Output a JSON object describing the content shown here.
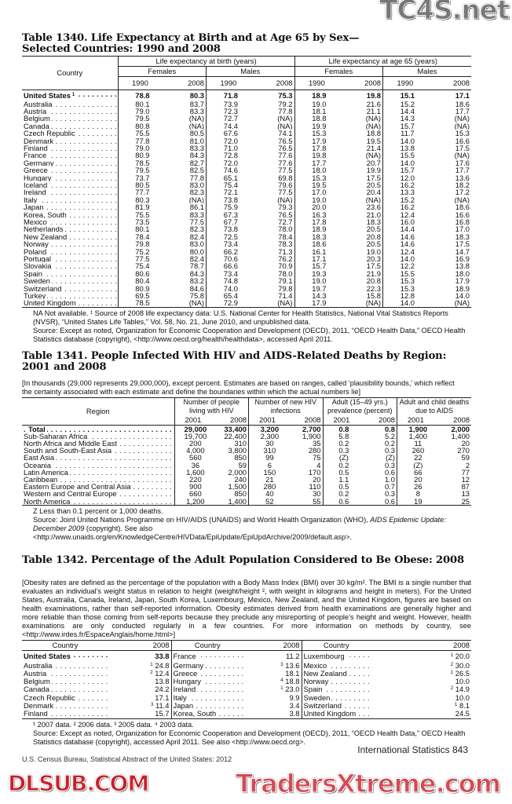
{
  "watermarks": {
    "top": "TC4S.net",
    "middle": "DLSUB.COM",
    "bottom": "TradersXtreme.com"
  },
  "t1340": {
    "title": "Table 1340. Life Expectancy at Birth and at Age 65 by Sex—Selected Countries: 1990 and 2008",
    "country_header": "Country",
    "group_headers": [
      "Life expectancy at birth (years)",
      "Life expectancy at age 65 (years)"
    ],
    "sex_headers": [
      "Females",
      "Males",
      "Females",
      "Males"
    ],
    "years": [
      "1990",
      "2008",
      "1990",
      "2008",
      "1990",
      "2008",
      "1990",
      "2008"
    ],
    "rows": [
      {
        "name": "United States",
        "sup": "1",
        "bold": true,
        "v": [
          "78.8",
          "80.3",
          "71.8",
          "75.3",
          "18.9",
          "19.8",
          "15.1",
          "17.1"
        ]
      },
      {
        "name": "Australia",
        "v": [
          "80.1",
          "83.7",
          "73.9",
          "79.2",
          "19.0",
          "21.6",
          "15.2",
          "18.6"
        ]
      },
      {
        "name": "Austria",
        "v": [
          "79.0",
          "83.3",
          "72.3",
          "77.8",
          "18.1",
          "21.1",
          "14.4",
          "17.7"
        ]
      },
      {
        "name": "Belgium",
        "v": [
          "79.5",
          "(NA)",
          "72.7",
          "(NA)",
          "18.8",
          "(NA)",
          "14.3",
          "(NA)"
        ]
      },
      {
        "name": "Canada",
        "v": [
          "80.8",
          "(NA)",
          "74.4",
          "(NA)",
          "19.9",
          "(NA)",
          "15.7",
          "(NA)"
        ]
      },
      {
        "name": "Czech Republic",
        "v": [
          "75.5",
          "80.5",
          "67.6",
          "74.1",
          "15.3",
          "18.8",
          "11.7",
          "15.3"
        ]
      },
      {
        "name": "Denmark",
        "v": [
          "77.8",
          "81.0",
          "72.0",
          "76.5",
          "17.9",
          "19.5",
          "14.0",
          "16.6"
        ]
      },
      {
        "name": "Finland",
        "v": [
          "79.0",
          "83.3",
          "71.0",
          "76.5",
          "17.8",
          "21.4",
          "13.8",
          "17.5"
        ]
      },
      {
        "name": "France",
        "v": [
          "80.9",
          "84.3",
          "72.8",
          "77.6",
          "19.8",
          "(NA)",
          "15.5",
          "(NA)"
        ]
      },
      {
        "name": "Germany",
        "v": [
          "78.5",
          "82.7",
          "72.0",
          "77.6",
          "17.7",
          "20.7",
          "14.0",
          "17.6"
        ]
      },
      {
        "name": "Greece",
        "v": [
          "79.5",
          "82.5",
          "74.6",
          "77.5",
          "18.0",
          "19.9",
          "15.7",
          "17.7"
        ]
      },
      {
        "name": "Hungary",
        "v": [
          "73.7",
          "77.8",
          "65.1",
          "69.8",
          "15.3",
          "17.5",
          "12.0",
          "13.6"
        ]
      },
      {
        "name": "Iceland",
        "v": [
          "80.5",
          "83.0",
          "75.4",
          "79.6",
          "19.5",
          "20.5",
          "16.2",
          "18.2"
        ]
      },
      {
        "name": "Ireland",
        "v": [
          "77.7",
          "82.3",
          "72.1",
          "77.5",
          "17.0",
          "20.4",
          "13.3",
          "17.2"
        ]
      },
      {
        "name": "Italy",
        "v": [
          "80.3",
          "(NA)",
          "73.8",
          "(NA)",
          "19.0",
          "(NA)",
          "15.2",
          "(NA)"
        ]
      },
      {
        "name": "Japan",
        "v": [
          "81.9",
          "86.1",
          "75.9",
          "79.3",
          "20.0",
          "23.6",
          "16.2",
          "18.6"
        ]
      },
      {
        "name": "Korea, South",
        "v": [
          "75.5",
          "83.3",
          "67.3",
          "76.5",
          "16.3",
          "21.0",
          "12.4",
          "16.6"
        ]
      },
      {
        "name": "Mexico",
        "v": [
          "73.5",
          "77.5",
          "67.7",
          "72.7",
          "17.8",
          "18.3",
          "16.0",
          "16.8"
        ]
      },
      {
        "name": "Netherlands",
        "v": [
          "80.1",
          "82.3",
          "73.8",
          "78.0",
          "18.9",
          "20.5",
          "14.4",
          "17.0"
        ]
      },
      {
        "name": "New Zealand",
        "v": [
          "78.4",
          "82.4",
          "72.5",
          "78.4",
          "18.3",
          "20.8",
          "14.6",
          "18.3"
        ]
      },
      {
        "name": "Norway",
        "v": [
          "79.8",
          "83.0",
          "73.4",
          "78.3",
          "18.6",
          "20.5",
          "14.6",
          "17.5"
        ]
      },
      {
        "name": "Poland",
        "v": [
          "75.2",
          "80.0",
          "66.2",
          "71.3",
          "16.1",
          "19.0",
          "12.4",
          "14.7"
        ]
      },
      {
        "name": "Portugal",
        "v": [
          "77.5",
          "82.4",
          "70.6",
          "76.2",
          "17.1",
          "20.3",
          "14.0",
          "16.9"
        ]
      },
      {
        "name": "Slovakia",
        "v": [
          "75.4",
          "78.7",
          "66.6",
          "70.9",
          "15.7",
          "17.5",
          "12.2",
          "13.8"
        ]
      },
      {
        "name": "Spain",
        "v": [
          "80.6",
          "84.3",
          "73.4",
          "78.0",
          "19.3",
          "21.9",
          "15.5",
          "18.0"
        ]
      },
      {
        "name": "Sweden",
        "v": [
          "80.4",
          "83.2",
          "74.8",
          "79.1",
          "19.0",
          "20.8",
          "15.3",
          "17.9"
        ]
      },
      {
        "name": "Switzerland",
        "v": [
          "80.9",
          "84.6",
          "74.0",
          "79.8",
          "19.7",
          "22.3",
          "15.3",
          "18.9"
        ]
      },
      {
        "name": "Turkey",
        "v": [
          "69.5",
          "75.8",
          "65.4",
          "71.4",
          "14.3",
          "15.8",
          "12.8",
          "14.0"
        ]
      },
      {
        "name": "United Kingdom",
        "v": [
          "78.5",
          "(NA)",
          "72.9",
          "(NA)",
          "17.9",
          "(NA)",
          "14.0",
          "(NA)"
        ]
      }
    ],
    "footnote": "NA Not available. ¹ Source of 2008 life expectancy data: U.S. National Center for Health Statistics, National Vital Statistics Reports (NVSR), “United States Life Tables,” Vol. 58, No. 21, June 2010, and unpublished data.",
    "source": "Source: Except as noted, Organization for Economic Cooperation and Development (OECD), 2011, “OECD Health Data,” OECD Health Statistics database (copyright), <http://www.oecd.org/health/healthdata>, accessed April 2011."
  },
  "t1341": {
    "title": "Table 1341. People Infected With HIV and AIDS-Related Deaths by Region: 2001 and 2008",
    "headnote": "[In thousands (29,000 represents 29,000,000), except percent. Estimates are based on ranges, called ‘plausibility bounds,’ which reflect the certainty associated with each estimate and define the boundaries within which the actual numbers lie]",
    "region_header": "Region",
    "group_headers": [
      "Number of people living with HIV",
      "Number of new HIV infections",
      "Adult (15–49 yrs.) prevalence (percent)",
      "Adult and child deaths due to AIDS"
    ],
    "years": [
      "2001",
      "2008",
      "2001",
      "2008",
      "2001",
      "2008",
      "2001",
      "2008"
    ],
    "rows": [
      {
        "name": "Total",
        "bold": true,
        "v": [
          "29,000",
          "33,400",
          "3,200",
          "2,700",
          "0.8",
          "0.8",
          "1,900",
          "2,000"
        ]
      },
      {
        "name": "Sub-Saharan Africa",
        "v": [
          "19,700",
          "22,400",
          "2,300",
          "1,900",
          "5.8",
          "5.2",
          "1,400",
          "1,400"
        ]
      },
      {
        "name": "North Africa and Middle East",
        "v": [
          "200",
          "310",
          "30",
          "35",
          "0.2",
          "0.2",
          "11",
          "20"
        ]
      },
      {
        "name": "South and South-East Asia",
        "v": [
          "4,000",
          "3,800",
          "310",
          "280",
          "0.3",
          "0.3",
          "260",
          "270"
        ]
      },
      {
        "name": "East Asia",
        "v": [
          "560",
          "850",
          "99",
          "75",
          "(Z)",
          "(Z)",
          "22",
          "59"
        ]
      },
      {
        "name": "Oceania",
        "v": [
          "36",
          "59",
          "6",
          "4",
          "0.2",
          "0.3",
          "(Z)",
          "2"
        ]
      },
      {
        "name": "Latin America",
        "v": [
          "1,600",
          "2,000",
          "150",
          "170",
          "0.5",
          "0.6",
          "66",
          "77"
        ]
      },
      {
        "name": "Caribbean",
        "v": [
          "220",
          "240",
          "21",
          "20",
          "1.1",
          "1.0",
          "20",
          "12"
        ]
      },
      {
        "name": "Eastern Europe and Central Asia",
        "v": [
          "900",
          "1,500",
          "280",
          "110",
          "0.5",
          "0.7",
          "26",
          "87"
        ]
      },
      {
        "name": "Western and Central Europe",
        "v": [
          "660",
          "850",
          "40",
          "30",
          "0.2",
          "0.3",
          "8",
          "13"
        ]
      },
      {
        "name": "North America",
        "v": [
          "1,200",
          "1,400",
          "52",
          "55",
          "0.6",
          "0.6",
          "19",
          "25"
        ]
      }
    ],
    "footnote": "Z Less than 0.1 percent or 1,000 deaths.",
    "source_a": "Source: Joint United Nations Programme on HIV/AIDS (UNAIDS) and World Health Organization (WHO), ",
    "source_italic": "AIDS Epidemic Update: December 2009",
    "source_b": " (copyright). See also <http://www.unaids.org/en/KnowledgeCentre/HIVData/EpiUpdate/EpiUpdArchive/2009/default.asp>."
  },
  "t1342": {
    "title": "Table 1342. Percentage of the Adult Population Considered to Be Obese: 2008",
    "headnote": "[Obesity rates are defined as the percentage of the population with a Body Mass Index (BMI) over 30 kg/m². The BMI is a single number that evaluates an individual’s weight status in relation to height (weight/height ², with weight in kilograms and height in meters). For the United States, Australia, Canada, Ireland, Japan, South Korea, Luxembourg, Mexico, New Zealand, and the United Kingdom, figures are based on health examinations, rather than self-reported information. Obesity estimates derived from health examinations are generally higher and more reliable than those coming from self-reports because they preclude any misreporting of people’s height and weight. However, health examinations are only conducted regularly in a few countries. For more information on methods by country, see <http://www.irdes.fr/EspaceAnglais/home.html>]",
    "col_country": "Country",
    "col_year": "2008",
    "columns": [
      [
        {
          "name": "United States",
          "v": "33.8",
          "bold": true
        },
        {
          "name": "Australia",
          "sup": "1",
          "v": "24.8"
        },
        {
          "name": "Austria",
          "sup": "2",
          "v": "12.4"
        },
        {
          "name": "Belgium",
          "v": "13.8"
        },
        {
          "name": "Canada",
          "v": "24.2"
        },
        {
          "name": "Czech Republic",
          "v": "17.1"
        },
        {
          "name": "Denmark",
          "sup": "3",
          "v": "11.4"
        },
        {
          "name": "Finland",
          "v": "15.7"
        }
      ],
      [
        {
          "name": "France",
          "v": "11.2"
        },
        {
          "name": "Germany",
          "sup": "3",
          "v": "13.6"
        },
        {
          "name": "Greece",
          "v": "18.1"
        },
        {
          "name": "Hungary",
          "sup": "4",
          "v": "18.8"
        },
        {
          "name": "Ireland",
          "sup": "1",
          "v": "23.0"
        },
        {
          "name": "Italy",
          "v": "9.9"
        },
        {
          "name": "Japan",
          "v": "3.4"
        },
        {
          "name": "Korea, South",
          "v": "3.8"
        }
      ],
      [
        {
          "name": "Luxembourg",
          "sup": "1",
          "v": "20.0"
        },
        {
          "name": "Mexico",
          "sup": "2",
          "v": "30.0"
        },
        {
          "name": "New Zealand",
          "sup": "1",
          "v": "26.5"
        },
        {
          "name": "Norway",
          "v": "10.0"
        },
        {
          "name": "Spain",
          "sup": "2",
          "v": "14.9"
        },
        {
          "name": "Sweden",
          "v": "10.0"
        },
        {
          "name": "Switzerland",
          "sup": "1",
          "v": "8.1"
        },
        {
          "name": "United Kingdom",
          "v": "24.5"
        }
      ]
    ],
    "footnote": "¹ 2007 data. ² 2006 data. ³ 2005 data. ⁴ 2003 data.",
    "source": "Source: Except as noted, Organization for Economic Cooperation and Development (OECD), 2011, “OECD Health Data,” OECD Health Statistics database (copyright), accessed April 2011. See also <http://www.oecd.org>."
  },
  "footer": {
    "left": "U.S. Census Bureau, Statistical Abstract of the United States: 2012",
    "right": "International Statistics  843"
  }
}
